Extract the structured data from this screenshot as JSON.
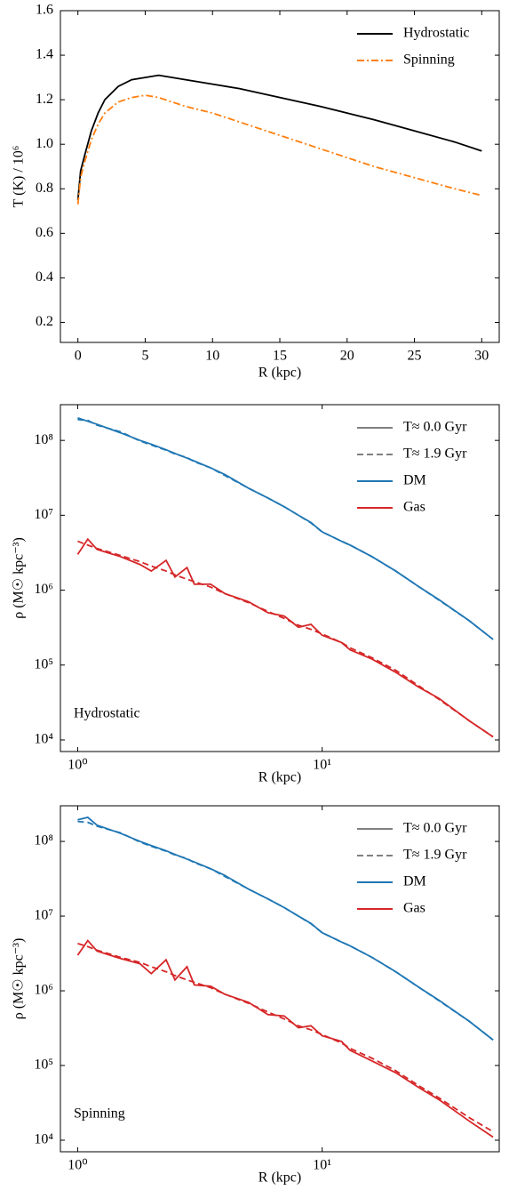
{
  "chart_data": [
    {
      "type": "line",
      "xlabel": "R (kpc)",
      "ylabel": "T (K) / 10⁶",
      "x": [
        0,
        0.2,
        0.5,
        1,
        1.5,
        2,
        3,
        4,
        5,
        6,
        7,
        8,
        10,
        12,
        15,
        18,
        20,
        22,
        25,
        28,
        30
      ],
      "series": [
        {
          "name": "Hydrostatic",
          "color": "#000000",
          "linestyle": "solid",
          "values": [
            0.75,
            0.88,
            0.95,
            1.06,
            1.14,
            1.2,
            1.26,
            1.29,
            1.3,
            1.31,
            1.3,
            1.29,
            1.27,
            1.25,
            1.21,
            1.17,
            1.14,
            1.11,
            1.06,
            1.01,
            0.97
          ]
        },
        {
          "name": "Spinning",
          "color": "#ff7f0e",
          "linestyle": "dashdot",
          "values": [
            0.73,
            0.85,
            0.92,
            1.02,
            1.09,
            1.14,
            1.19,
            1.21,
            1.22,
            1.21,
            1.19,
            1.17,
            1.14,
            1.1,
            1.04,
            0.98,
            0.94,
            0.9,
            0.85,
            0.8,
            0.77
          ]
        }
      ],
      "xlim": [
        -1.3,
        31.3
      ],
      "ylim": [
        0.11,
        1.6
      ],
      "xticks": [
        0,
        5,
        10,
        15,
        20,
        25,
        30
      ],
      "yticks": [
        0.2,
        0.4,
        0.6,
        0.8,
        {
          "value": 1,
          "label": "1.0"
        },
        1.2,
        1.4,
        1.6
      ],
      "legend_loc": "upper right"
    },
    {
      "type": "line",
      "xlabel": "R (kpc)",
      "ylabel": "ρ (M☉ kpc⁻³)",
      "xscale": "log",
      "yscale": "log",
      "annotation": "Hydrostatic",
      "x": [
        1,
        1.1,
        1.2,
        1.5,
        1.8,
        2,
        2.3,
        2.5,
        2.8,
        3,
        3.5,
        4,
        5,
        6,
        7,
        8,
        9,
        10,
        12,
        13,
        16,
        20,
        25,
        30,
        40,
        50
      ],
      "series": [
        {
          "color": "#1f77b4",
          "linestyle": "solid",
          "values": [
            200000000,
            180000000,
            164000000,
            126000000,
            100000000,
            89000000,
            75000000,
            67000000,
            58000000,
            53000000,
            43000000,
            35000000,
            23000000,
            17000000,
            13000000,
            10000000,
            8000000,
            6000000,
            4500000,
            4000000,
            2800000,
            1800000,
            1100000,
            750000,
            390000,
            220000
          ]
        },
        {
          "color": "#1f77b4",
          "linestyle": "dashed",
          "values": [
            190000000,
            185000000,
            160000000,
            130000000,
            98000000,
            87000000,
            74000000,
            66000000,
            59000000,
            52000000,
            43000000,
            34000000,
            23000000,
            17000000,
            13000000,
            10000000,
            7900000,
            6000000,
            4500000,
            4000000,
            2800000,
            1800000,
            1100000,
            740000,
            390000,
            220000
          ]
        },
        {
          "color": "#d62728",
          "linestyle": "solid",
          "values": [
            3000000,
            4800000,
            3500000,
            2800000,
            2200000,
            1800000,
            2500000,
            1500000,
            2000000,
            1200000,
            1200000,
            900000,
            700000,
            500000,
            450000,
            320000,
            350000,
            250000,
            200000,
            160000,
            120000,
            80000,
            50000,
            36000,
            18000,
            11000
          ]
        },
        {
          "color": "#d62728",
          "linestyle": "dashed",
          "values": [
            4500000,
            4000000,
            3600000,
            2900000,
            2400000,
            2100000,
            1800000,
            1600000,
            1400000,
            1300000,
            1100000,
            900000,
            680000,
            520000,
            420000,
            340000,
            300000,
            260000,
            200000,
            170000,
            125000,
            85000,
            52000,
            35000,
            18000,
            11000
          ]
        }
      ],
      "legend": [
        {
          "name": "T≈ 0.0 Gyr",
          "color": "#808080",
          "linestyle": "solid"
        },
        {
          "name": "T≈ 1.9 Gyr",
          "color": "#808080",
          "linestyle": "dashed"
        },
        {
          "name": "DM",
          "color": "#1f77b4",
          "linestyle": "solid"
        },
        {
          "name": "Gas",
          "color": "#d62728",
          "linestyle": "solid"
        }
      ],
      "xlim": [
        0.85,
        53
      ],
      "ylim": [
        7000,
        300000000
      ],
      "xticks": [
        {
          "value": 1,
          "label": "10⁰"
        },
        {
          "value": 10,
          "label": "10¹"
        }
      ],
      "yticks": [
        {
          "value": 10000,
          "label": "10⁴"
        },
        {
          "value": 100000,
          "label": "10⁵"
        },
        {
          "value": 1000000,
          "label": "10⁶"
        },
        {
          "value": 10000000,
          "label": "10⁷"
        },
        {
          "value": 100000000,
          "label": "10⁸"
        }
      ],
      "legend_loc": "upper right"
    },
    {
      "type": "line",
      "xlabel": "R (kpc)",
      "ylabel": "ρ (M☉ kpc⁻³)",
      "xscale": "log",
      "yscale": "log",
      "annotation": "Spinning",
      "x": [
        1,
        1.1,
        1.2,
        1.5,
        1.8,
        2,
        2.3,
        2.5,
        2.8,
        3,
        3.5,
        4,
        5,
        6,
        7,
        8,
        9,
        10,
        12,
        13,
        16,
        20,
        25,
        30,
        40,
        50
      ],
      "series": [
        {
          "color": "#1f77b4",
          "linestyle": "solid",
          "values": [
            195000000,
            210000000,
            165000000,
            128000000,
            100000000,
            88000000,
            75000000,
            67000000,
            58000000,
            53000000,
            43000000,
            35000000,
            23000000,
            17000000,
            13000000,
            10000000,
            8000000,
            6000000,
            4500000,
            4000000,
            2800000,
            1800000,
            1100000,
            750000,
            390000,
            220000
          ]
        },
        {
          "color": "#1f77b4",
          "linestyle": "dashed",
          "values": [
            185000000,
            180000000,
            160000000,
            130000000,
            98000000,
            86000000,
            74000000,
            66000000,
            59000000,
            52000000,
            43000000,
            34000000,
            23000000,
            17000000,
            13000000,
            10000000,
            7900000,
            6000000,
            4500000,
            4000000,
            2800000,
            1800000,
            1100000,
            740000,
            390000,
            220000
          ]
        },
        {
          "color": "#d62728",
          "linestyle": "solid",
          "values": [
            3000000,
            4700000,
            3400000,
            2700000,
            2300000,
            1700000,
            2600000,
            1400000,
            2100000,
            1200000,
            1150000,
            900000,
            700000,
            480000,
            460000,
            320000,
            340000,
            250000,
            210000,
            160000,
            115000,
            80000,
            50000,
            35000,
            18000,
            11000
          ]
        },
        {
          "color": "#d62728",
          "linestyle": "dashed",
          "values": [
            4300000,
            3900000,
            3500000,
            2800000,
            2400000,
            2100000,
            1800000,
            1600000,
            1400000,
            1300000,
            1100000,
            900000,
            680000,
            520000,
            420000,
            340000,
            300000,
            260000,
            200000,
            170000,
            125000,
            85000,
            53000,
            37000,
            20000,
            13000
          ]
        }
      ],
      "legend": [
        {
          "name": "T≈ 0.0 Gyr",
          "color": "#808080",
          "linestyle": "solid"
        },
        {
          "name": "T≈ 1.9 Gyr",
          "color": "#808080",
          "linestyle": "dashed"
        },
        {
          "name": "DM",
          "color": "#1f77b4",
          "linestyle": "solid"
        },
        {
          "name": "Gas",
          "color": "#d62728",
          "linestyle": "solid"
        }
      ],
      "xlim": [
        0.85,
        53
      ],
      "ylim": [
        7000,
        300000000
      ],
      "xticks": [
        {
          "value": 1,
          "label": "10⁰"
        },
        {
          "value": 10,
          "label": "10¹"
        }
      ],
      "yticks": [
        {
          "value": 10000,
          "label": "10⁴"
        },
        {
          "value": 100000,
          "label": "10⁵"
        },
        {
          "value": 1000000,
          "label": "10⁶"
        },
        {
          "value": 10000000,
          "label": "10⁷"
        },
        {
          "value": 100000000,
          "label": "10⁸"
        }
      ],
      "legend_loc": "upper right"
    }
  ]
}
